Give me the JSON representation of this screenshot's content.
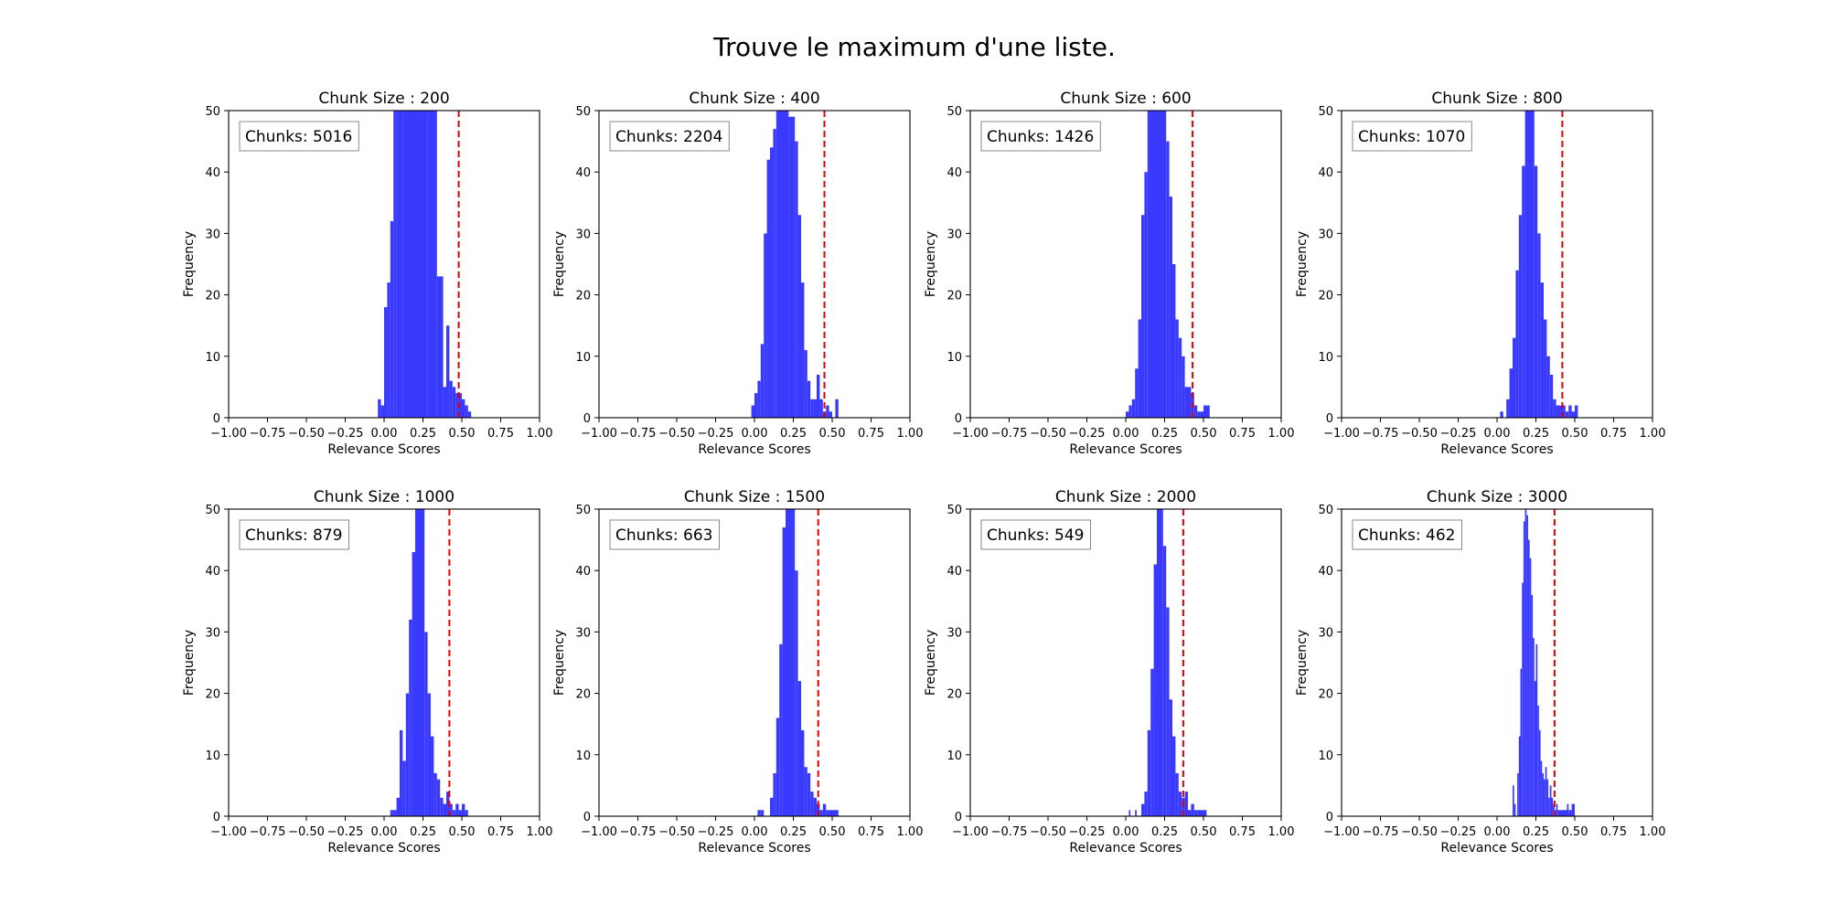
{
  "figure": {
    "title": "Trouve le maximum d'une liste.",
    "colors": {
      "bars": "#3a3aff",
      "threshold": "#e00000",
      "frame": "#000000"
    }
  },
  "chart_data": [
    {
      "type": "histogram",
      "title": "Chunk Size : 200",
      "annotation": "Chunks: 5016",
      "xlabel": "Relevance Scores",
      "ylabel": "Frequency",
      "xlim": [
        -1.0,
        1.0
      ],
      "ylim": [
        0,
        50
      ],
      "xticks": [
        "−1.00",
        "−0.75",
        "−0.50",
        "−0.25",
        "0.00",
        "0.25",
        "0.50",
        "0.75",
        "1.00"
      ],
      "yticks": [
        "0",
        "10",
        "20",
        "30",
        "40",
        "50"
      ],
      "threshold": 0.48,
      "bins": [
        [
          -0.04,
          -0.02,
          3
        ],
        [
          -0.02,
          0.0,
          2
        ],
        [
          0.0,
          0.02,
          18
        ],
        [
          0.02,
          0.04,
          22
        ],
        [
          0.04,
          0.06,
          32
        ],
        [
          0.06,
          0.08,
          50
        ],
        [
          0.08,
          0.12,
          50
        ],
        [
          0.12,
          0.2,
          50
        ],
        [
          0.2,
          0.28,
          50
        ],
        [
          0.28,
          0.34,
          50
        ],
        [
          0.34,
          0.38,
          23
        ],
        [
          0.38,
          0.4,
          5
        ],
        [
          0.4,
          0.42,
          15
        ],
        [
          0.42,
          0.44,
          6
        ],
        [
          0.44,
          0.46,
          5
        ],
        [
          0.46,
          0.48,
          4
        ],
        [
          0.48,
          0.5,
          4
        ],
        [
          0.5,
          0.52,
          3
        ],
        [
          0.52,
          0.54,
          2
        ],
        [
          0.54,
          0.56,
          1
        ]
      ]
    },
    {
      "type": "histogram",
      "title": "Chunk Size : 400",
      "annotation": "Chunks: 2204",
      "xlabel": "Relevance Scores",
      "ylabel": "Frequency",
      "xlim": [
        -1.0,
        1.0
      ],
      "ylim": [
        0,
        50
      ],
      "xticks": [
        "−1.00",
        "−0.75",
        "−0.50",
        "−0.25",
        "0.00",
        "0.25",
        "0.50",
        "0.75",
        "1.00"
      ],
      "yticks": [
        "0",
        "10",
        "20",
        "30",
        "40",
        "50"
      ],
      "threshold": 0.45,
      "bins": [
        [
          -0.02,
          0.0,
          2
        ],
        [
          0.0,
          0.02,
          4
        ],
        [
          0.02,
          0.04,
          6
        ],
        [
          0.04,
          0.06,
          12
        ],
        [
          0.06,
          0.08,
          30
        ],
        [
          0.08,
          0.1,
          42
        ],
        [
          0.1,
          0.12,
          44
        ],
        [
          0.12,
          0.14,
          47
        ],
        [
          0.14,
          0.22,
          50
        ],
        [
          0.22,
          0.26,
          49
        ],
        [
          0.26,
          0.28,
          45
        ],
        [
          0.28,
          0.3,
          33
        ],
        [
          0.3,
          0.32,
          22
        ],
        [
          0.32,
          0.34,
          11
        ],
        [
          0.34,
          0.36,
          6
        ],
        [
          0.36,
          0.38,
          3
        ],
        [
          0.38,
          0.4,
          3
        ],
        [
          0.4,
          0.42,
          7
        ],
        [
          0.42,
          0.44,
          3
        ],
        [
          0.44,
          0.46,
          1
        ],
        [
          0.46,
          0.48,
          2
        ],
        [
          0.48,
          0.5,
          1
        ],
        [
          0.52,
          0.54,
          3
        ]
      ]
    },
    {
      "type": "histogram",
      "title": "Chunk Size : 600",
      "annotation": "Chunks: 1426",
      "xlabel": "Relevance Scores",
      "ylabel": "Frequency",
      "xlim": [
        -1.0,
        1.0
      ],
      "ylim": [
        0,
        50
      ],
      "xticks": [
        "−1.00",
        "−0.75",
        "−0.50",
        "−0.25",
        "0.00",
        "0.25",
        "0.50",
        "0.75",
        "1.00"
      ],
      "yticks": [
        "0",
        "10",
        "20",
        "30",
        "40",
        "50"
      ],
      "threshold": 0.43,
      "bins": [
        [
          0.0,
          0.02,
          1
        ],
        [
          0.02,
          0.04,
          2
        ],
        [
          0.04,
          0.06,
          3
        ],
        [
          0.06,
          0.08,
          8
        ],
        [
          0.08,
          0.1,
          16
        ],
        [
          0.1,
          0.12,
          33
        ],
        [
          0.12,
          0.14,
          40
        ],
        [
          0.14,
          0.2,
          50
        ],
        [
          0.2,
          0.26,
          50
        ],
        [
          0.26,
          0.28,
          45
        ],
        [
          0.28,
          0.3,
          36
        ],
        [
          0.3,
          0.32,
          25
        ],
        [
          0.32,
          0.34,
          16
        ],
        [
          0.34,
          0.36,
          13
        ],
        [
          0.36,
          0.38,
          10
        ],
        [
          0.38,
          0.4,
          5
        ],
        [
          0.4,
          0.42,
          5
        ],
        [
          0.42,
          0.44,
          4
        ],
        [
          0.44,
          0.46,
          2
        ],
        [
          0.46,
          0.48,
          1
        ],
        [
          0.48,
          0.5,
          1
        ],
        [
          0.5,
          0.54,
          2
        ]
      ]
    },
    {
      "type": "histogram",
      "title": "Chunk Size : 800",
      "annotation": "Chunks: 1070",
      "xlabel": "Relevance Scores",
      "ylabel": "Frequency",
      "xlim": [
        -1.0,
        1.0
      ],
      "ylim": [
        0,
        50
      ],
      "xticks": [
        "−1.00",
        "−0.75",
        "−0.50",
        "−0.25",
        "0.00",
        "0.25",
        "0.50",
        "0.75",
        "1.00"
      ],
      "yticks": [
        "0",
        "10",
        "20",
        "30",
        "40",
        "50"
      ],
      "threshold": 0.42,
      "bins": [
        [
          0.02,
          0.04,
          1
        ],
        [
          0.06,
          0.08,
          3
        ],
        [
          0.08,
          0.1,
          8
        ],
        [
          0.1,
          0.12,
          13
        ],
        [
          0.12,
          0.14,
          24
        ],
        [
          0.14,
          0.16,
          33
        ],
        [
          0.16,
          0.18,
          41
        ],
        [
          0.18,
          0.2,
          50
        ],
        [
          0.2,
          0.24,
          50
        ],
        [
          0.24,
          0.26,
          41
        ],
        [
          0.26,
          0.28,
          30
        ],
        [
          0.28,
          0.3,
          22
        ],
        [
          0.3,
          0.32,
          16
        ],
        [
          0.32,
          0.34,
          10
        ],
        [
          0.34,
          0.36,
          7
        ],
        [
          0.36,
          0.38,
          3
        ],
        [
          0.38,
          0.4,
          2
        ],
        [
          0.4,
          0.42,
          2
        ],
        [
          0.42,
          0.44,
          2
        ],
        [
          0.44,
          0.46,
          1
        ],
        [
          0.46,
          0.48,
          2
        ],
        [
          0.48,
          0.5,
          1
        ],
        [
          0.5,
          0.52,
          2
        ]
      ]
    },
    {
      "type": "histogram",
      "title": "Chunk Size : 1000",
      "annotation": "Chunks: 879",
      "xlabel": "Relevance Scores",
      "ylabel": "Frequency",
      "xlim": [
        -1.0,
        1.0
      ],
      "ylim": [
        0,
        50
      ],
      "xticks": [
        "−1.00",
        "−0.75",
        "−0.50",
        "−0.25",
        "0.00",
        "0.25",
        "0.50",
        "0.75",
        "1.00"
      ],
      "yticks": [
        "0",
        "10",
        "20",
        "30",
        "40",
        "50"
      ],
      "threshold": 0.42,
      "bins": [
        [
          0.04,
          0.06,
          1
        ],
        [
          0.06,
          0.08,
          1
        ],
        [
          0.08,
          0.1,
          3
        ],
        [
          0.1,
          0.12,
          14
        ],
        [
          0.12,
          0.14,
          9
        ],
        [
          0.14,
          0.16,
          20
        ],
        [
          0.16,
          0.18,
          32
        ],
        [
          0.18,
          0.2,
          43
        ],
        [
          0.2,
          0.26,
          50
        ],
        [
          0.26,
          0.28,
          30
        ],
        [
          0.28,
          0.3,
          20
        ],
        [
          0.3,
          0.32,
          13
        ],
        [
          0.32,
          0.34,
          7
        ],
        [
          0.34,
          0.36,
          6
        ],
        [
          0.36,
          0.38,
          3
        ],
        [
          0.38,
          0.4,
          2
        ],
        [
          0.4,
          0.42,
          4
        ],
        [
          0.42,
          0.44,
          2
        ],
        [
          0.44,
          0.46,
          1
        ],
        [
          0.46,
          0.48,
          2
        ],
        [
          0.48,
          0.5,
          1
        ],
        [
          0.5,
          0.52,
          2
        ],
        [
          0.52,
          0.54,
          1
        ]
      ]
    },
    {
      "type": "histogram",
      "title": "Chunk Size : 1500",
      "annotation": "Chunks: 663",
      "xlabel": "Relevance Scores",
      "ylabel": "Frequency",
      "xlim": [
        -1.0,
        1.0
      ],
      "ylim": [
        0,
        50
      ],
      "xticks": [
        "−1.00",
        "−0.75",
        "−0.50",
        "−0.25",
        "0.00",
        "0.25",
        "0.50",
        "0.75",
        "1.00"
      ],
      "yticks": [
        "0",
        "10",
        "20",
        "30",
        "40",
        "50"
      ],
      "threshold": 0.41,
      "bins": [
        [
          0.02,
          0.04,
          1
        ],
        [
          0.04,
          0.06,
          1
        ],
        [
          0.1,
          0.12,
          3
        ],
        [
          0.12,
          0.14,
          7
        ],
        [
          0.14,
          0.16,
          16
        ],
        [
          0.16,
          0.18,
          28
        ],
        [
          0.18,
          0.2,
          47
        ],
        [
          0.2,
          0.26,
          50
        ],
        [
          0.26,
          0.28,
          40
        ],
        [
          0.28,
          0.3,
          22
        ],
        [
          0.3,
          0.32,
          14
        ],
        [
          0.32,
          0.34,
          8
        ],
        [
          0.34,
          0.36,
          7
        ],
        [
          0.36,
          0.38,
          4
        ],
        [
          0.38,
          0.4,
          3
        ],
        [
          0.4,
          0.42,
          2
        ],
        [
          0.42,
          0.44,
          1
        ],
        [
          0.44,
          0.46,
          2
        ],
        [
          0.46,
          0.48,
          1
        ],
        [
          0.48,
          0.54,
          1
        ]
      ]
    },
    {
      "type": "histogram",
      "title": "Chunk Size : 2000",
      "annotation": "Chunks: 549",
      "xlabel": "Relevance Scores",
      "ylabel": "Frequency",
      "xlim": [
        -1.0,
        1.0
      ],
      "ylim": [
        0,
        50
      ],
      "xticks": [
        "−1.00",
        "−0.75",
        "−0.50",
        "−0.25",
        "0.00",
        "0.25",
        "0.50",
        "0.75",
        "1.00"
      ],
      "yticks": [
        "0",
        "10",
        "20",
        "30",
        "40",
        "50"
      ],
      "threshold": 0.37,
      "bins": [
        [
          0.02,
          0.03,
          1
        ],
        [
          0.06,
          0.07,
          1
        ],
        [
          0.1,
          0.12,
          2
        ],
        [
          0.12,
          0.14,
          4
        ],
        [
          0.14,
          0.16,
          14
        ],
        [
          0.16,
          0.18,
          24
        ],
        [
          0.18,
          0.2,
          41
        ],
        [
          0.2,
          0.24,
          50
        ],
        [
          0.24,
          0.26,
          44
        ],
        [
          0.26,
          0.28,
          34
        ],
        [
          0.28,
          0.3,
          19
        ],
        [
          0.3,
          0.32,
          13
        ],
        [
          0.32,
          0.34,
          7
        ],
        [
          0.34,
          0.36,
          4
        ],
        [
          0.36,
          0.38,
          3
        ],
        [
          0.38,
          0.4,
          4
        ],
        [
          0.4,
          0.42,
          1
        ],
        [
          0.42,
          0.44,
          2
        ],
        [
          0.44,
          0.46,
          1
        ],
        [
          0.46,
          0.52,
          1
        ]
      ]
    },
    {
      "type": "histogram",
      "title": "Chunk Size : 3000",
      "annotation": "Chunks: 462",
      "xlabel": "Relevance Scores",
      "ylabel": "Frequency",
      "xlim": [
        -1.0,
        1.0
      ],
      "ylim": [
        0,
        50
      ],
      "xticks": [
        "−1.00",
        "−0.75",
        "−0.50",
        "−0.25",
        "0.00",
        "0.25",
        "0.50",
        "0.75",
        "1.00"
      ],
      "yticks": [
        "0",
        "10",
        "20",
        "30",
        "40",
        "50"
      ],
      "threshold": 0.37,
      "bins": [
        [
          0.1,
          0.11,
          5
        ],
        [
          0.11,
          0.12,
          2
        ],
        [
          0.13,
          0.14,
          7
        ],
        [
          0.14,
          0.15,
          13
        ],
        [
          0.15,
          0.16,
          24
        ],
        [
          0.16,
          0.17,
          38
        ],
        [
          0.17,
          0.18,
          48
        ],
        [
          0.18,
          0.19,
          50
        ],
        [
          0.19,
          0.2,
          49
        ],
        [
          0.2,
          0.21,
          45
        ],
        [
          0.21,
          0.22,
          42
        ],
        [
          0.22,
          0.23,
          36
        ],
        [
          0.23,
          0.24,
          29
        ],
        [
          0.24,
          0.25,
          22
        ],
        [
          0.25,
          0.26,
          28
        ],
        [
          0.26,
          0.27,
          18
        ],
        [
          0.27,
          0.28,
          14
        ],
        [
          0.28,
          0.29,
          9
        ],
        [
          0.29,
          0.3,
          7
        ],
        [
          0.3,
          0.31,
          6
        ],
        [
          0.31,
          0.32,
          8
        ],
        [
          0.32,
          0.33,
          6
        ],
        [
          0.33,
          0.34,
          3
        ],
        [
          0.34,
          0.35,
          5
        ],
        [
          0.35,
          0.36,
          3
        ],
        [
          0.36,
          0.37,
          2
        ],
        [
          0.37,
          0.38,
          1
        ],
        [
          0.38,
          0.39,
          2
        ],
        [
          0.39,
          0.4,
          1
        ],
        [
          0.4,
          0.45,
          1
        ],
        [
          0.45,
          0.46,
          2
        ],
        [
          0.46,
          0.48,
          1
        ],
        [
          0.48,
          0.5,
          2
        ]
      ]
    }
  ]
}
